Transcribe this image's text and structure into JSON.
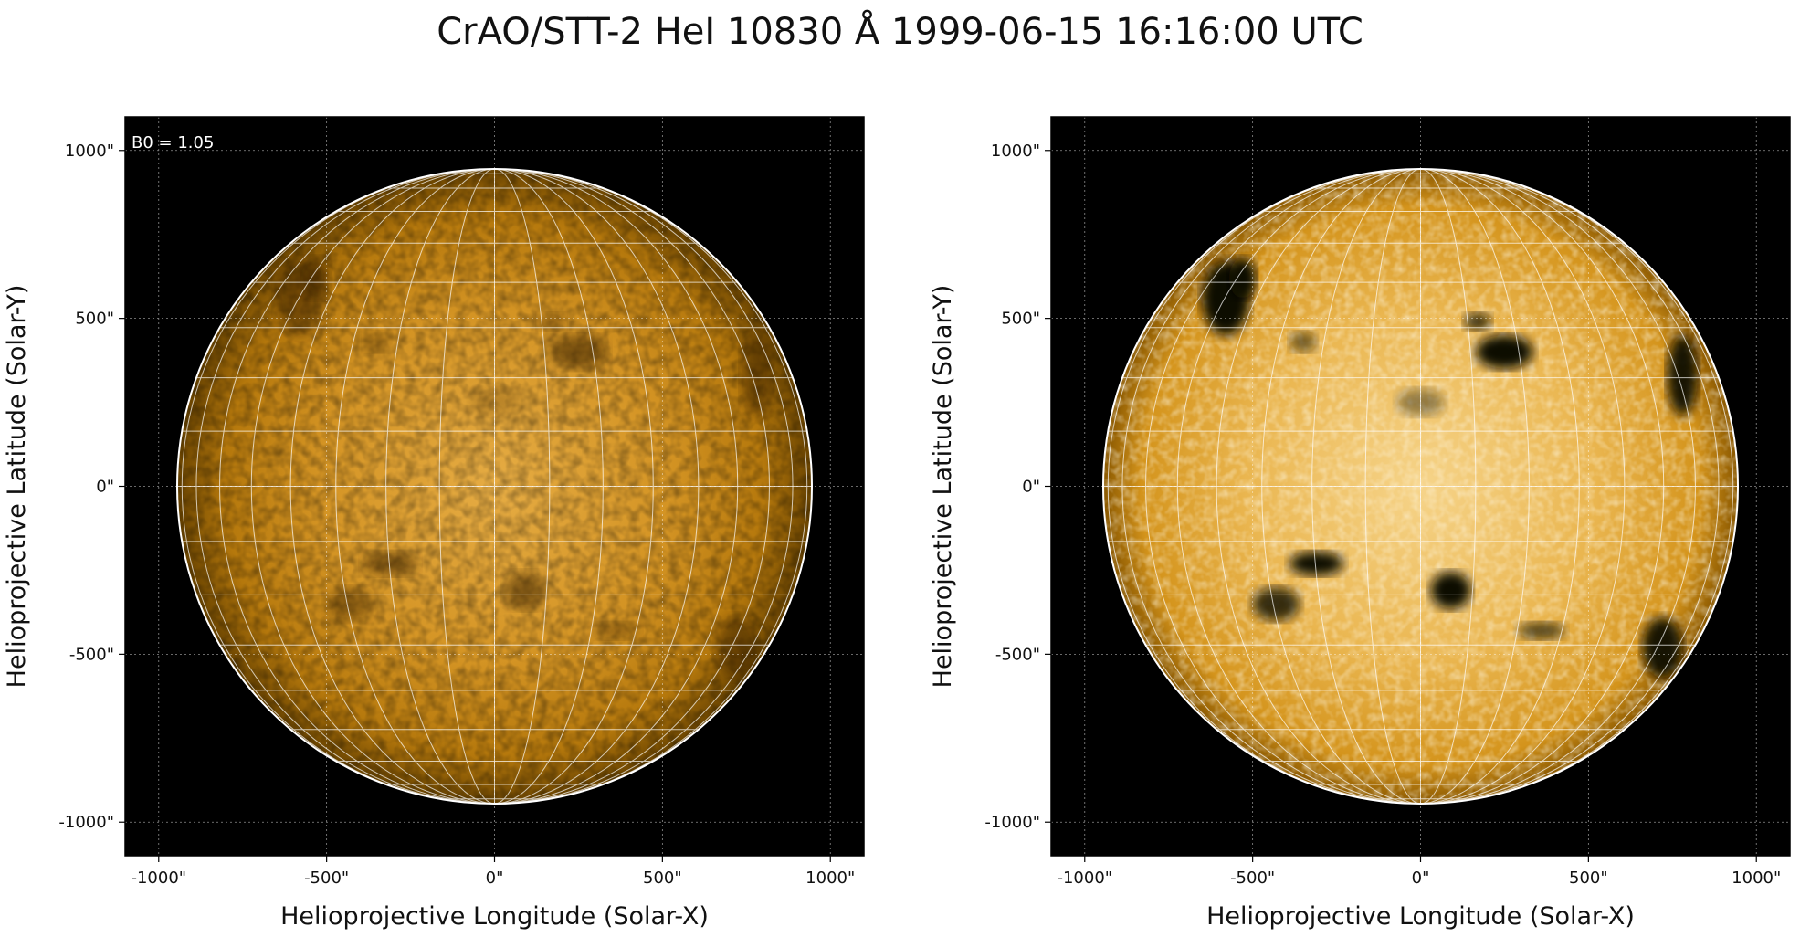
{
  "figure": {
    "title": "CrAO/STT-2 HeI 10830 Å 1999-06-15 16:16:00 UTC",
    "colors": {
      "background": "#000000",
      "disk_base": "#c8880c",
      "disk_bright": "#f4d890",
      "grid": "#ffffff"
    }
  },
  "panels": [
    {
      "name": "left",
      "annotation": "B0 = 1.05",
      "xlabel": "Helioprojective Longitude (Solar-X)",
      "ylabel": "Helioprojective Latitude (Solar-Y)",
      "xticks": [
        "-1000\"",
        "-500\"",
        "0\"",
        "500\"",
        "1000\""
      ],
      "yticks": [
        "1000\"",
        "500\"",
        "0\"",
        "-500\"",
        "-1000\""
      ],
      "contrast": "normal"
    },
    {
      "name": "right",
      "annotation": "",
      "xlabel": "Helioprojective Longitude (Solar-X)",
      "ylabel": "Helioprojective Latitude (Solar-Y)",
      "xticks": [
        "-1000\"",
        "-500\"",
        "0\"",
        "500\"",
        "1000\""
      ],
      "yticks": [
        "1000\"",
        "500\"",
        "0\"",
        "-500\"",
        "-1000\""
      ],
      "contrast": "enhanced"
    }
  ],
  "axes": {
    "x_range": [
      -1100,
      1100
    ],
    "y_range": [
      -1100,
      1100
    ],
    "tick_values": [
      -1000,
      -500,
      0,
      500,
      1000
    ],
    "solar_radius_arcsec": 945,
    "b0_deg": 1.05
  }
}
